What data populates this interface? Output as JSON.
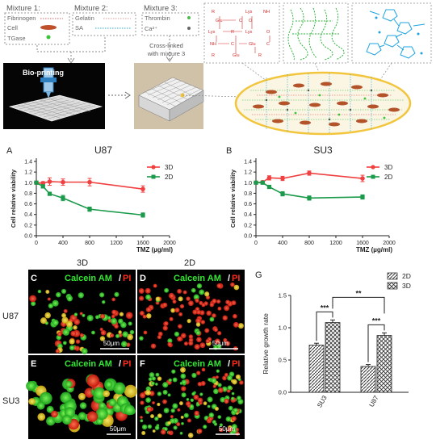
{
  "schematic": {
    "mixture1": {
      "title": "Mixture 1:",
      "items": [
        "Fibrinogen",
        "Cell",
        "TGase"
      ]
    },
    "mixture2": {
      "title": "Mixture 2:",
      "items": [
        "Gelatin",
        "SA"
      ]
    },
    "mixture3": {
      "title": "Mixture 3:",
      "items": [
        "Thrombin",
        "Ca²⁺"
      ]
    },
    "bioprint_label": "Bio-printing",
    "crosslink_label_line1": "Cross-linked",
    "crosslink_label_line2": "with mixture 3",
    "chem": {
      "glu": "Glu",
      "lys": "Lys",
      "nh": "NH",
      "r": "R",
      "c": "C",
      "o": "O"
    },
    "colors": {
      "fibrin": "#e8434a",
      "gelatin": "#2eb82e",
      "alginate": "#1fa3e0",
      "ellipse_border": "#f2c53d"
    }
  },
  "chart_data": [
    {
      "panel": "A",
      "type": "line",
      "title": "U87",
      "xlabel": "TMZ (µg/ml)",
      "ylabel": "Cell relative viability",
      "xlim": [
        0,
        2000
      ],
      "ylim": [
        0.0,
        1.4
      ],
      "xticks": [
        0,
        400,
        800,
        1200,
        1600,
        2000
      ],
      "yticks": [
        0.0,
        0.2,
        0.4,
        0.6,
        0.8,
        1.0,
        1.2,
        1.4
      ],
      "series": [
        {
          "name": "3D",
          "color": "#f0403f",
          "marker": "circle",
          "x": [
            0,
            100,
            200,
            400,
            800,
            1600
          ],
          "y": [
            1.0,
            0.99,
            1.02,
            1.01,
            1.01,
            0.88
          ],
          "err": [
            0.03,
            0.03,
            0.07,
            0.06,
            0.07,
            0.06
          ]
        },
        {
          "name": "2D",
          "color": "#1a9a4a",
          "marker": "square",
          "x": [
            0,
            100,
            200,
            400,
            800,
            1600
          ],
          "y": [
            1.0,
            0.93,
            0.79,
            0.71,
            0.5,
            0.39
          ],
          "err": [
            0.02,
            0.03,
            0.03,
            0.05,
            0.04,
            0.04
          ]
        }
      ]
    },
    {
      "panel": "B",
      "type": "line",
      "title": "SU3",
      "xlabel": "TMZ (µg/ml)",
      "ylabel": "Cell relative viability",
      "xlim": [
        0,
        2000
      ],
      "ylim": [
        0.0,
        1.4
      ],
      "xticks": [
        0,
        400,
        800,
        1200,
        1600,
        2000
      ],
      "yticks": [
        0.0,
        0.2,
        0.4,
        0.6,
        0.8,
        1.0,
        1.2,
        1.4
      ],
      "series": [
        {
          "name": "3D",
          "color": "#f0403f",
          "marker": "circle",
          "x": [
            0,
            100,
            200,
            400,
            800,
            1600
          ],
          "y": [
            1.0,
            1.01,
            1.09,
            1.08,
            1.18,
            1.08
          ],
          "err": [
            0.02,
            0.02,
            0.04,
            0.04,
            0.04,
            0.06
          ]
        },
        {
          "name": "2D",
          "color": "#1a9a4a",
          "marker": "square",
          "x": [
            0,
            100,
            200,
            400,
            800,
            1600
          ],
          "y": [
            1.0,
            1.0,
            0.92,
            0.79,
            0.71,
            0.73
          ],
          "err": [
            0.02,
            0.02,
            0.03,
            0.04,
            0.04,
            0.04
          ]
        }
      ]
    },
    {
      "panel": "G",
      "type": "bar",
      "title": "",
      "xlabel": "",
      "ylabel": "Relative growth rate",
      "categories": [
        "SU3",
        "U87"
      ],
      "ylim": [
        0.0,
        1.5
      ],
      "yticks": [
        0.0,
        0.5,
        1.0,
        1.5
      ],
      "series": [
        {
          "name": "2D",
          "pattern": "hatch",
          "values": [
            0.73,
            0.4
          ],
          "err": [
            0.03,
            0.03
          ]
        },
        {
          "name": "3D",
          "pattern": "crosshatch",
          "values": [
            1.08,
            0.88
          ],
          "err": [
            0.04,
            0.04
          ]
        }
      ],
      "significance": [
        {
          "label": "***",
          "type": "within",
          "category": "SU3"
        },
        {
          "label": "***",
          "type": "within",
          "category": "U87"
        },
        {
          "label": "**",
          "type": "between",
          "categories": [
            "SU3",
            "U87"
          ]
        }
      ]
    }
  ],
  "micrographs": {
    "col_3d": "3D",
    "col_2d": "2D",
    "row_u87": "U87",
    "row_su3": "SU3",
    "stain_green": "Calcein AM",
    "stain_slash": "/",
    "stain_red": "PI",
    "scale": "50μm",
    "panels": [
      "C",
      "D",
      "E",
      "F"
    ],
    "panel_g": "G",
    "colors": {
      "green": "#33e633",
      "red": "#ff2a1a",
      "yellow": "#e6d21a"
    }
  }
}
